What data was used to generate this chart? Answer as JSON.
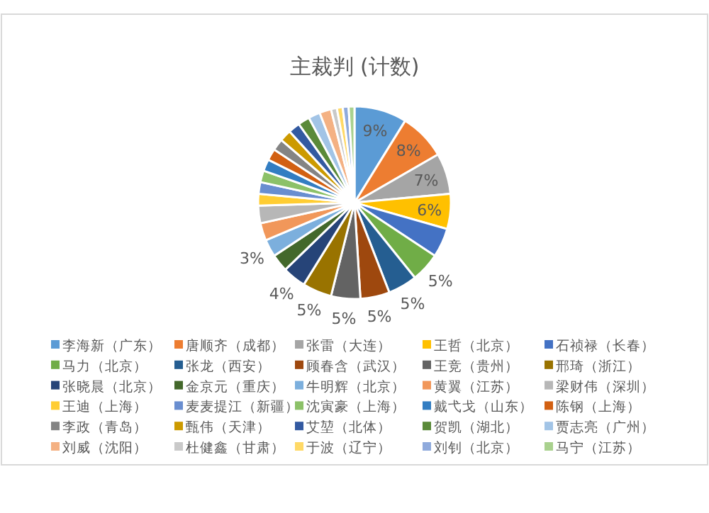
{
  "chart_data": {
    "type": "pie",
    "title": "主裁判 (计数)",
    "legend": "bottom",
    "categories": [
      "李海新（广东）",
      "唐顺齐（成都）",
      "张雷（大连）",
      "王哲（北京）",
      "石祯禄（长春）",
      "马力（北京）",
      "张龙（西安）",
      "顾春含（武汉）",
      "王竞（贵州）",
      "邢琦（浙江）",
      "张晓晨（北京）",
      "金京元（重庆）",
      "牛明辉（北京）",
      "黄翼（江苏）",
      "梁财伟（深圳）",
      "王迪（上海）",
      "麦麦提江（新疆）",
      "沈寅豪（上海）",
      "戴弋戈（山东）",
      "陈钢（上海）",
      "李政（青岛）",
      "甄伟（天津）",
      "艾堃（北体）",
      "贺凯（湖北）",
      "贾志亮（广州）",
      "刘威（沈阳）",
      "杜健鑫（甘肃）",
      "于波（辽宁）",
      "刘钊（北京）",
      "马宁（江苏）"
    ],
    "values": [
      9,
      8,
      7,
      6,
      5,
      5,
      5,
      5,
      5,
      5,
      4,
      3,
      3,
      3,
      3,
      2,
      2,
      2,
      2,
      2,
      2,
      2,
      2,
      2,
      2,
      2,
      1,
      1,
      1,
      1
    ],
    "value_labels": [
      "9%",
      "8%",
      "7%",
      "6%",
      null,
      "5%",
      "5%",
      "5%",
      "5%",
      "5%",
      "4%",
      null,
      "3%",
      null,
      null,
      null,
      null,
      null,
      null,
      null,
      null,
      null,
      null,
      null,
      null,
      null,
      null,
      null,
      null,
      null
    ],
    "colors": [
      "#5b9bd5",
      "#ed7d31",
      "#a5a5a5",
      "#ffc000",
      "#4472c4",
      "#70ad47",
      "#255e91",
      "#9e480e",
      "#636363",
      "#997300",
      "#264478",
      "#43682b",
      "#7cafdd",
      "#f1975a",
      "#b7b7b7",
      "#ffcd33",
      "#698ed0",
      "#8cc168",
      "#327dc2",
      "#d26012",
      "#848484",
      "#cc9a00",
      "#335aa1",
      "#5a8a39",
      "#a2c4e6",
      "#f4b183",
      "#c9c9c9",
      "#ffd966",
      "#8faadc",
      "#a9d18e"
    ]
  }
}
